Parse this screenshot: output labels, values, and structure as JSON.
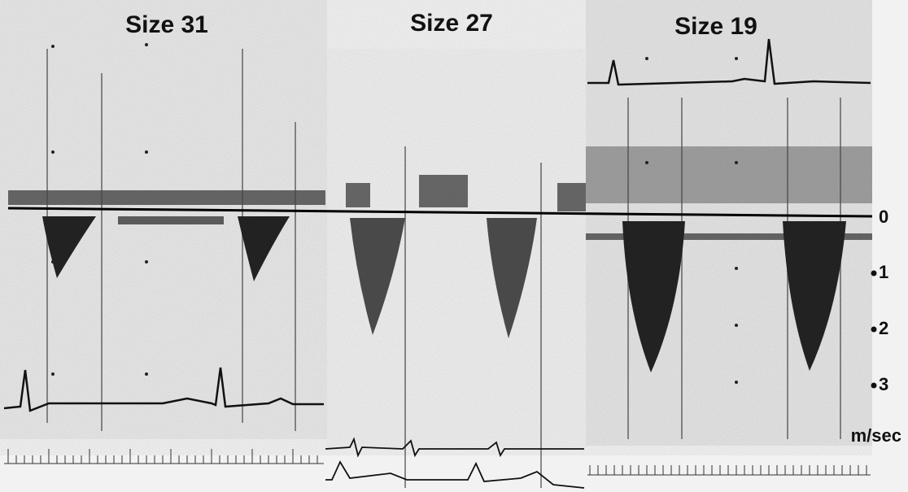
{
  "panels": [
    {
      "title": "Size 31"
    },
    {
      "title": "Size 27"
    },
    {
      "title": "Size 19"
    }
  ],
  "scale": {
    "labels": [
      "0",
      "1",
      "2",
      "3"
    ],
    "unit": "m/sec"
  }
}
